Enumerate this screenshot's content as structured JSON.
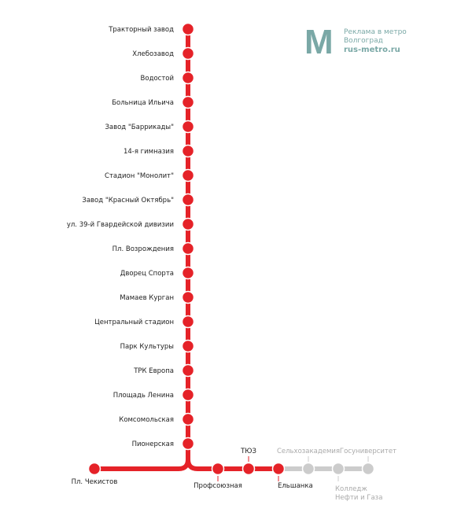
{
  "colors": {
    "line": "#e52228",
    "planned": "#cccccc",
    "logo": "#7aa8a6"
  },
  "logo": {
    "letter": "М",
    "line1": "Реклама в метро",
    "line2": "Волгоград",
    "line3": "rus-metro.ru"
  },
  "vertical_stations": [
    "Тракторный завод",
    "Хлебозавод",
    "Водостой",
    "Больница Ильича",
    "Завод \"Баррикады\"",
    "14-я гимназия",
    "Стадион \"Монолит\"",
    "Завод \"Красный Октябрь\"",
    "ул. 39-й Гвардейской дивизии",
    "Пл. Возрождения",
    "Дворец Спорта",
    "Мамаев Курган",
    "Центральный стадион",
    "Парк Культуры",
    "ТРК Европа",
    "Площадь Ленина",
    "Комсомольская",
    "Пионерская"
  ],
  "horizontal_stations": [
    {
      "name": "Пл. Чекистов",
      "status": "open",
      "label": "below"
    },
    {
      "name": "Профсоюзная",
      "status": "open",
      "label": "below"
    },
    {
      "name": "ТЮЗ",
      "status": "open",
      "label": "above"
    },
    {
      "name": "Ельшанка",
      "status": "open",
      "label": "below"
    },
    {
      "name": "Сельхозакадемия",
      "status": "planned",
      "label": "above"
    },
    {
      "name": "Колледж Нефти и Газа",
      "lines": [
        "Колледж",
        "Нефти и Газа"
      ],
      "status": "planned",
      "label": "below"
    },
    {
      "name": "Госуниверситет",
      "status": "planned",
      "label": "above"
    }
  ]
}
